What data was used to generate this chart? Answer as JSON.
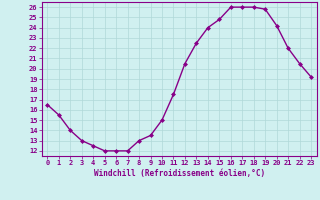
{
  "x": [
    0,
    1,
    2,
    3,
    4,
    5,
    6,
    7,
    8,
    9,
    10,
    11,
    12,
    13,
    14,
    15,
    16,
    17,
    18,
    19,
    20,
    21,
    22,
    23
  ],
  "y": [
    16.5,
    15.5,
    14.0,
    13.0,
    12.5,
    12.0,
    12.0,
    12.0,
    13.0,
    13.5,
    15.0,
    17.5,
    20.5,
    22.5,
    24.0,
    24.8,
    26.0,
    26.0,
    26.0,
    25.8,
    24.2,
    22.0,
    20.5,
    19.2
  ],
  "line_color": "#880088",
  "marker": "D",
  "markersize": 2.0,
  "linewidth": 1.0,
  "xlim": [
    -0.5,
    23.5
  ],
  "ylim": [
    11.5,
    26.5
  ],
  "yticks": [
    12,
    13,
    14,
    15,
    16,
    17,
    18,
    19,
    20,
    21,
    22,
    23,
    24,
    25,
    26
  ],
  "xticks": [
    0,
    1,
    2,
    3,
    4,
    5,
    6,
    7,
    8,
    9,
    10,
    11,
    12,
    13,
    14,
    15,
    16,
    17,
    18,
    19,
    20,
    21,
    22,
    23
  ],
  "xlabel": "Windchill (Refroidissement éolien,°C)",
  "xlabel_fontsize": 5.5,
  "tick_fontsize": 5.0,
  "bg_color": "#d0f0f0",
  "grid_color": "#b0d8d8",
  "border_color": "#880088",
  "fig_width": 3.2,
  "fig_height": 2.0
}
